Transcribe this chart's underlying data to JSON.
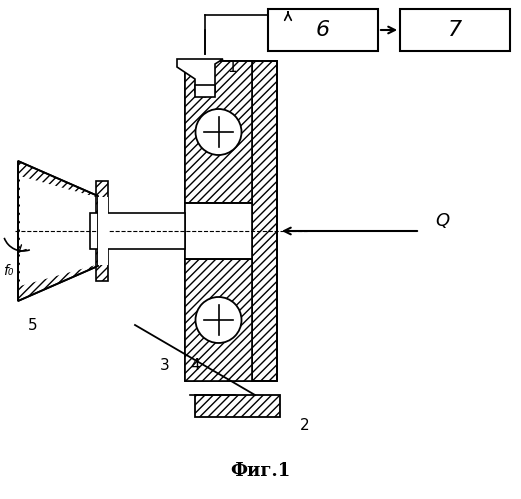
{
  "title": "Фиг.1",
  "background_color": "#ffffff",
  "label1": "1",
  "label2": "2",
  "label3": "3",
  "label4": "4",
  "label5": "5",
  "label6": "6",
  "label7": "7",
  "labelQ": "Q",
  "labelf": "f₀"
}
